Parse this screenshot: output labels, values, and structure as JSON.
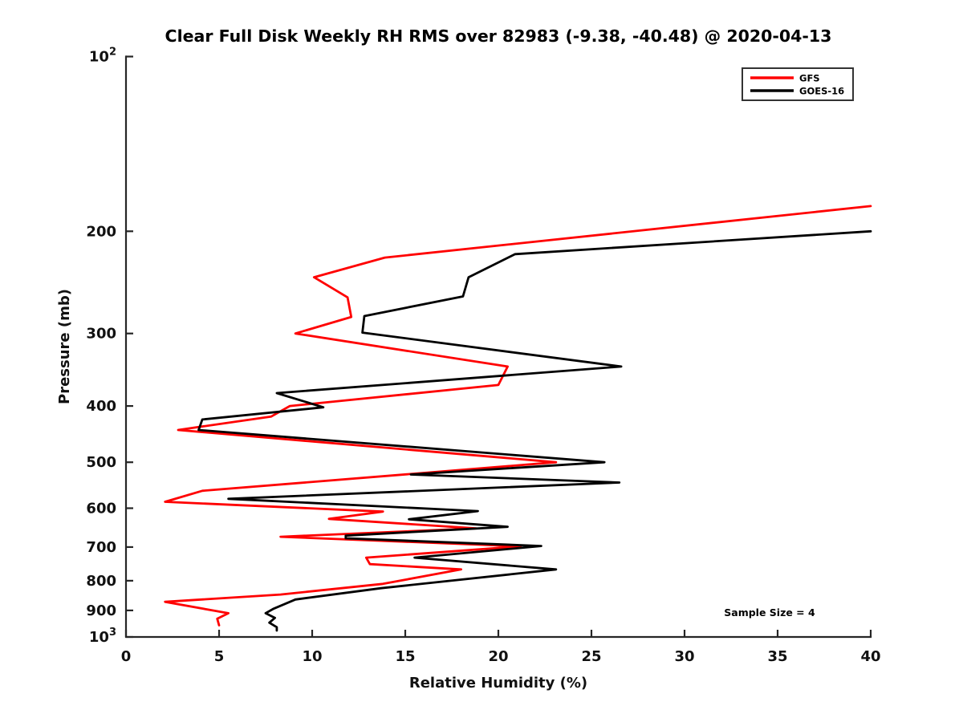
{
  "chart_data": {
    "type": "line",
    "title": "Clear Full Disk Weekly RH RMS over 82983 (-9.38, -40.48) @ 2020-04-13",
    "xlabel": "Relative Humidity (%)",
    "ylabel": "Pressure (mb)",
    "xlim": [
      0,
      40
    ],
    "xticks": [
      0,
      5,
      10,
      15,
      20,
      25,
      30,
      35,
      40
    ],
    "yscale": "log",
    "ylim": [
      100,
      1000
    ],
    "y_axis_inverted": true,
    "yticks": [
      {
        "v": 100,
        "label": "10^2"
      },
      {
        "v": 200,
        "label": "200"
      },
      {
        "v": 300,
        "label": "300"
      },
      {
        "v": 400,
        "label": "400"
      },
      {
        "v": 500,
        "label": "500"
      },
      {
        "v": 600,
        "label": "600"
      },
      {
        "v": 700,
        "label": "700"
      },
      {
        "v": 800,
        "label": "800"
      },
      {
        "v": 900,
        "label": "900"
      },
      {
        "v": 1000,
        "label": "10^3"
      }
    ],
    "grid": false,
    "legend_position": "top-right",
    "annotation": "Sample Size = 4",
    "colors": {
      "gfs": "#ff0000",
      "goes16": "#000000",
      "spine": "#262626",
      "text": "#111111"
    },
    "series": [
      {
        "name": "GFS",
        "color": "#ff0000",
        "points_rh_pressure": [
          [
            40.0,
            181
          ],
          [
            13.9,
            222
          ],
          [
            10.1,
            240
          ],
          [
            11.9,
            260
          ],
          [
            12.1,
            281
          ],
          [
            9.1,
            300
          ],
          [
            20.5,
            342
          ],
          [
            20.0,
            368
          ],
          [
            8.8,
            400
          ],
          [
            7.8,
            417
          ],
          [
            2.8,
            440
          ],
          [
            23.1,
            500
          ],
          [
            4.1,
            560
          ],
          [
            2.1,
            585
          ],
          [
            13.8,
            608
          ],
          [
            10.9,
            626
          ],
          [
            18.8,
            650
          ],
          [
            8.3,
            672
          ],
          [
            21.2,
            698
          ],
          [
            12.9,
            730
          ],
          [
            13.1,
            749
          ],
          [
            18.0,
            765
          ],
          [
            13.8,
            810
          ],
          [
            8.3,
            845
          ],
          [
            2.1,
            870
          ],
          [
            5.5,
            910
          ],
          [
            4.9,
            930
          ],
          [
            5.0,
            955
          ]
        ]
      },
      {
        "name": "GOES-16",
        "color": "#000000",
        "points_rh_pressure": [
          [
            40.0,
            200
          ],
          [
            20.9,
            219
          ],
          [
            18.4,
            240
          ],
          [
            18.1,
            259
          ],
          [
            12.8,
            280
          ],
          [
            12.7,
            299
          ],
          [
            26.6,
            342
          ],
          [
            8.1,
            380
          ],
          [
            10.6,
            402
          ],
          [
            4.1,
            422
          ],
          [
            3.9,
            440
          ],
          [
            25.7,
            500
          ],
          [
            15.3,
            525
          ],
          [
            26.5,
            542
          ],
          [
            5.5,
            578
          ],
          [
            18.9,
            607
          ],
          [
            15.2,
            627
          ],
          [
            20.5,
            646
          ],
          [
            11.8,
            669
          ],
          [
            11.8,
            676
          ],
          [
            22.3,
            697
          ],
          [
            15.5,
            730
          ],
          [
            23.1,
            765
          ],
          [
            13.7,
            824
          ],
          [
            9.1,
            862
          ],
          [
            7.9,
            895
          ],
          [
            7.5,
            910
          ],
          [
            8.0,
            927
          ],
          [
            7.7,
            945
          ],
          [
            8.1,
            962
          ],
          [
            8.1,
            975
          ]
        ]
      }
    ]
  }
}
